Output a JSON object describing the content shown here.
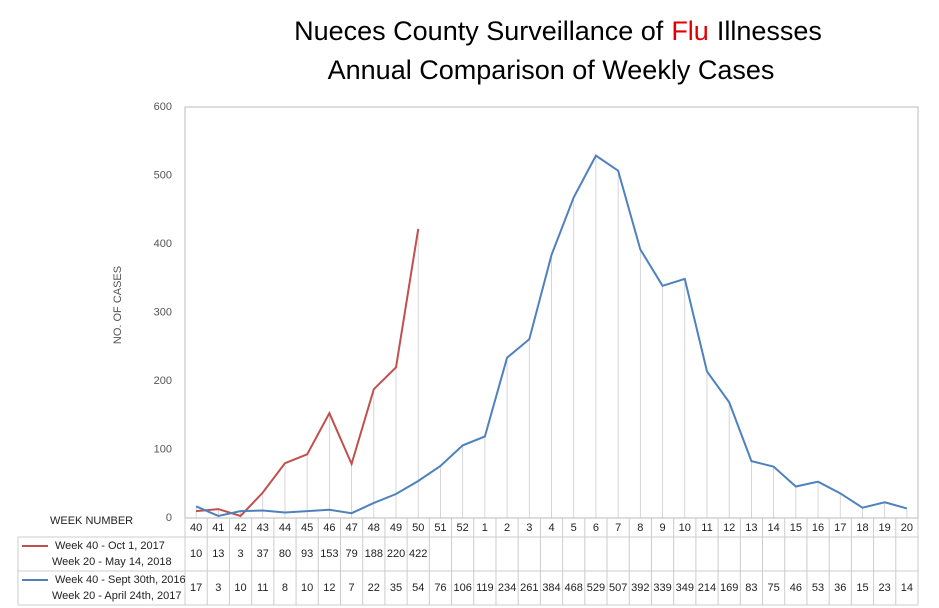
{
  "chart_data": {
    "type": "line",
    "title": [
      "Nueces County Surveillance of",
      "Flu",
      "Illnesses"
    ],
    "subtitle": "Annual Comparison of Weekly Cases",
    "y_label": "NO. OF CASES",
    "table_header": "WEEK NUMBER",
    "categories": [
      "40",
      "41",
      "42",
      "43",
      "44",
      "45",
      "46",
      "47",
      "48",
      "49",
      "50",
      "51",
      "52",
      "1",
      "2",
      "3",
      "4",
      "5",
      "6",
      "7",
      "8",
      "9",
      "10",
      "11",
      "12",
      "13",
      "14",
      "15",
      "16",
      "17",
      "18",
      "19",
      "20"
    ],
    "ylim": [
      0,
      600
    ],
    "yticks": [
      0,
      100,
      200,
      300,
      400,
      500,
      600
    ],
    "series": [
      {
        "name": [
          "Week 40 - Oct 1, 2017",
          "Week 20 - May 14, 2018"
        ],
        "color": "#c0504d",
        "values": [
          10,
          13,
          3,
          37,
          80,
          93,
          153,
          79,
          188,
          220,
          422,
          null,
          null,
          null,
          null,
          null,
          null,
          null,
          null,
          null,
          null,
          null,
          null,
          null,
          null,
          null,
          null,
          null,
          null,
          null,
          null,
          null,
          null
        ]
      },
      {
        "name": [
          "Week 40 - Sept 30th, 2016",
          "Week 20 - April 24th, 2017"
        ],
        "color": "#4f81bd",
        "values": [
          17,
          3,
          10,
          11,
          8,
          10,
          12,
          7,
          22,
          35,
          54,
          76,
          106,
          119,
          234,
          261,
          384,
          468,
          529,
          507,
          392,
          339,
          349,
          214,
          169,
          83,
          75,
          46,
          53,
          36,
          15,
          23,
          14
        ]
      }
    ]
  }
}
